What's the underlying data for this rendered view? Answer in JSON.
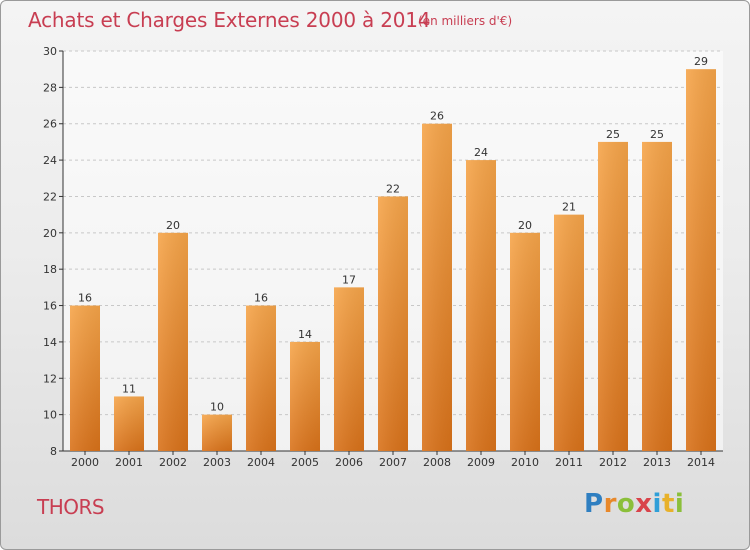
{
  "title": "Achats et Charges Externes 2000 à 2014",
  "subtitle": "(en milliers d'€)",
  "commune": "THORS",
  "logo": {
    "letters": [
      {
        "ch": "P",
        "color": "#2f7fc1"
      },
      {
        "ch": "r",
        "color": "#e8882a"
      },
      {
        "ch": "o",
        "color": "#8bbf3a"
      },
      {
        "ch": "x",
        "color": "#d9434a"
      },
      {
        "ch": "i",
        "color": "#2f9fd8"
      },
      {
        "ch": "t",
        "color": "#e8b12a"
      },
      {
        "ch": "i",
        "color": "#8bbf3a"
      }
    ]
  },
  "colors": {
    "title": "#c83e52",
    "bar_light": "#f6a54a",
    "bar_dark": "#d9721a",
    "axis": "#333333",
    "grid": "#c8c8c8"
  },
  "chart_data": {
    "type": "bar",
    "title": "Achats et Charges Externes 2000 à 2014",
    "subtitle": "(en milliers d'€)",
    "categories": [
      "2000",
      "2001",
      "2002",
      "2003",
      "2004",
      "2005",
      "2006",
      "2007",
      "2008",
      "2009",
      "2010",
      "2011",
      "2012",
      "2013",
      "2014"
    ],
    "values": [
      16,
      11,
      20,
      10,
      16,
      14,
      17,
      22,
      26,
      24,
      20,
      21,
      25,
      25,
      29
    ],
    "ylim": [
      8,
      30
    ],
    "yticks": [
      8,
      10,
      12,
      14,
      16,
      18,
      20,
      22,
      24,
      26,
      28,
      30
    ],
    "grid": "horizontal dashed",
    "data_labels": true
  }
}
